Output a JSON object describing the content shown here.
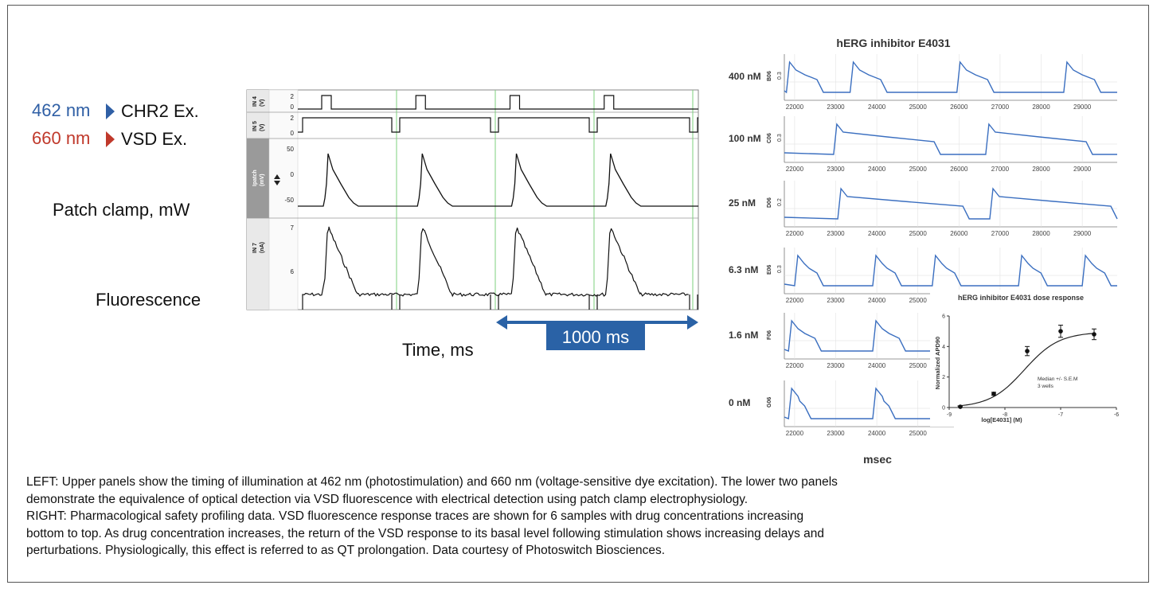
{
  "left_panel": {
    "light_462": {
      "wavelength": "462 nm",
      "label": "CHR2 Ex.",
      "color": "#2f5fa5"
    },
    "light_660": {
      "wavelength": "660 nm",
      "label": "VSD Ex.",
      "color": "#c0392b"
    },
    "patch_label": "Patch clamp, mW",
    "fluor_label": "Fluorescence",
    "time_label": "Time, ms",
    "scale_label": "1000 ms",
    "scale_color": "#2a62a6",
    "channels": {
      "in4": {
        "name": "IN 4",
        "unit": "(V)",
        "ticks": [
          "2",
          "0"
        ]
      },
      "in5": {
        "name": "IN 5",
        "unit": "(V)",
        "ticks": [
          "2",
          "0"
        ]
      },
      "ipatch": {
        "name": "Ipatch",
        "unit": "(mV)",
        "ticks": [
          "50",
          "0",
          "-50"
        ]
      },
      "in7": {
        "name": "IN 7",
        "unit": "(nA)",
        "ticks": [
          "7",
          "6"
        ]
      }
    },
    "pulse_count": 4,
    "trace_color": "#111111",
    "gridline_color": "#7ed17e"
  },
  "right_panel": {
    "title": "hERG inhibitor  E4031",
    "trace_color": "#3b6fc0",
    "x_ticks": [
      "22000",
      "23000",
      "24000",
      "25000",
      "26000",
      "27000",
      "28000",
      "29000"
    ],
    "x_label": "msec",
    "rows": [
      {
        "conc": "400 nM",
        "well": "B06",
        "ytick": "0.3"
      },
      {
        "conc": "100 nM",
        "well": "C06",
        "ytick": "0.3"
      },
      {
        "conc": "25 nM",
        "well": "D06",
        "ytick": "0.2"
      },
      {
        "conc": "6.3 nM",
        "well": "E06",
        "ytick": "0.3"
      },
      {
        "conc": "1.6 nM",
        "well": "F06",
        "ytick": ""
      },
      {
        "conc": "0 nM",
        "well": "G06",
        "ytick": ""
      }
    ]
  },
  "chart_data": {
    "type": "scatter",
    "title": "hERG inhibitor E4031 dose response",
    "xlabel": "log[E4031] (M)",
    "ylabel": "Normalized APD90",
    "xlim": [
      -9,
      -6
    ],
    "ylim": [
      0,
      6
    ],
    "x_ticks": [
      "-9",
      "-8",
      "-7",
      "-6"
    ],
    "y_ticks": [
      "0",
      "2",
      "4",
      "6"
    ],
    "x": [
      -8.8,
      -8.2,
      -7.6,
      -7.0,
      -6.4
    ],
    "y": [
      0.05,
      0.9,
      3.7,
      5.0,
      4.8
    ],
    "error": [
      0.05,
      0.1,
      0.3,
      0.4,
      0.35
    ],
    "fit": "sigmoid",
    "annotation": [
      "Median +/- S.E.M",
      "3 wells"
    ]
  },
  "caption": {
    "line1": "LEFT: Upper panels show the timing of illumination at 462 nm (photostimulation) and 660 nm (voltage-sensitive dye excitation). The lower two panels",
    "line2": "demonstrate the equivalence of optical detection via VSD fluorescence with electrical detection using patch clamp electrophysiology.",
    "line3": "RIGHT: Pharmacological safety profiling data. VSD fluorescence response traces are shown for 6 samples with drug concentrations increasing",
    "line4": "bottom to top. As drug concentration increases, the return of the VSD response to its basal level following stimulation shows increasing delays and",
    "line5": "perturbations. Physiologically, this effect is referred to as QT prolongation. Data courtesy of Photoswitch Biosciences."
  }
}
